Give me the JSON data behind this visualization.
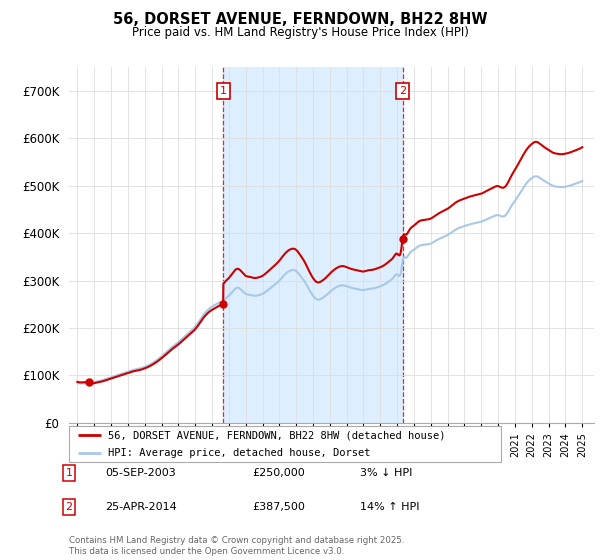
{
  "title": "56, DORSET AVENUE, FERNDOWN, BH22 8HW",
  "subtitle": "Price paid vs. HM Land Registry's House Price Index (HPI)",
  "legend_line1": "56, DORSET AVENUE, FERNDOWN, BH22 8HW (detached house)",
  "legend_line2": "HPI: Average price, detached house, Dorset",
  "annotation1_label": "1",
  "annotation1_date": "05-SEP-2003",
  "annotation1_price": "£250,000",
  "annotation1_hpi": "3% ↓ HPI",
  "annotation2_label": "2",
  "annotation2_date": "25-APR-2014",
  "annotation2_price": "£387,500",
  "annotation2_hpi": "14% ↑ HPI",
  "footer": "Contains HM Land Registry data © Crown copyright and database right 2025.\nThis data is licensed under the Open Government Licence v3.0.",
  "hpi_color": "#a8c8e8",
  "shade_color": "#ddeeff",
  "price_color": "#cc0000",
  "annotation_color": "#cc0000",
  "grid_color": "#dddddd",
  "background_color": "#ffffff",
  "ylim": [
    0,
    750000
  ],
  "yticks": [
    0,
    100000,
    200000,
    300000,
    400000,
    500000,
    600000,
    700000
  ],
  "ytick_labels": [
    "£0",
    "£100K",
    "£200K",
    "£300K",
    "£400K",
    "£500K",
    "£600K",
    "£700K"
  ],
  "xlim_start": 1994.5,
  "xlim_end": 2025.7,
  "sale1_year": 2003.67,
  "sale1_value": 250000,
  "sale2_year": 2014.32,
  "sale2_value": 387500,
  "sale0_year": 1995.67,
  "sale0_value": 86000,
  "hpi_data": [
    [
      1995.0,
      84000
    ],
    [
      1995.25,
      83000
    ],
    [
      1995.5,
      83500
    ],
    [
      1995.75,
      84000
    ],
    [
      1996.0,
      86000
    ],
    [
      1996.25,
      88000
    ],
    [
      1996.5,
      90000
    ],
    [
      1996.75,
      93000
    ],
    [
      1997.0,
      96000
    ],
    [
      1997.25,
      99000
    ],
    [
      1997.5,
      102000
    ],
    [
      1997.75,
      105000
    ],
    [
      1998.0,
      108000
    ],
    [
      1998.25,
      111000
    ],
    [
      1998.5,
      113000
    ],
    [
      1998.75,
      115000
    ],
    [
      1999.0,
      118000
    ],
    [
      1999.25,
      122000
    ],
    [
      1999.5,
      127000
    ],
    [
      1999.75,
      133000
    ],
    [
      2000.0,
      140000
    ],
    [
      2000.25,
      148000
    ],
    [
      2000.5,
      156000
    ],
    [
      2000.75,
      163000
    ],
    [
      2001.0,
      170000
    ],
    [
      2001.25,
      178000
    ],
    [
      2001.5,
      186000
    ],
    [
      2001.75,
      194000
    ],
    [
      2002.0,
      203000
    ],
    [
      2002.25,
      215000
    ],
    [
      2002.5,
      228000
    ],
    [
      2002.75,
      238000
    ],
    [
      2003.0,
      245000
    ],
    [
      2003.25,
      250000
    ],
    [
      2003.5,
      255000
    ],
    [
      2003.67,
      257000
    ],
    [
      2003.75,
      260000
    ],
    [
      2004.0,
      268000
    ],
    [
      2004.25,
      278000
    ],
    [
      2004.5,
      285000
    ],
    [
      2004.75,
      280000
    ],
    [
      2005.0,
      272000
    ],
    [
      2005.25,
      270000
    ],
    [
      2005.5,
      268000
    ],
    [
      2005.75,
      269000
    ],
    [
      2006.0,
      272000
    ],
    [
      2006.25,
      278000
    ],
    [
      2006.5,
      285000
    ],
    [
      2006.75,
      292000
    ],
    [
      2007.0,
      300000
    ],
    [
      2007.25,
      310000
    ],
    [
      2007.5,
      318000
    ],
    [
      2007.75,
      322000
    ],
    [
      2008.0,
      320000
    ],
    [
      2008.25,
      310000
    ],
    [
      2008.5,
      298000
    ],
    [
      2008.75,
      282000
    ],
    [
      2009.0,
      268000
    ],
    [
      2009.25,
      260000
    ],
    [
      2009.5,
      262000
    ],
    [
      2009.75,
      268000
    ],
    [
      2010.0,
      276000
    ],
    [
      2010.25,
      283000
    ],
    [
      2010.5,
      288000
    ],
    [
      2010.75,
      290000
    ],
    [
      2011.0,
      288000
    ],
    [
      2011.25,
      285000
    ],
    [
      2011.5,
      283000
    ],
    [
      2011.75,
      281000
    ],
    [
      2012.0,
      280000
    ],
    [
      2012.25,
      282000
    ],
    [
      2012.5,
      283000
    ],
    [
      2012.75,
      285000
    ],
    [
      2013.0,
      288000
    ],
    [
      2013.25,
      292000
    ],
    [
      2013.5,
      298000
    ],
    [
      2013.75,
      305000
    ],
    [
      2014.0,
      313000
    ],
    [
      2014.25,
      322000
    ],
    [
      2014.32,
      340000
    ],
    [
      2014.5,
      348000
    ],
    [
      2014.75,
      358000
    ],
    [
      2015.0,
      365000
    ],
    [
      2015.25,
      372000
    ],
    [
      2015.5,
      375000
    ],
    [
      2015.75,
      376000
    ],
    [
      2016.0,
      378000
    ],
    [
      2016.25,
      383000
    ],
    [
      2016.5,
      388000
    ],
    [
      2016.75,
      392000
    ],
    [
      2017.0,
      396000
    ],
    [
      2017.25,
      402000
    ],
    [
      2017.5,
      408000
    ],
    [
      2017.75,
      412000
    ],
    [
      2018.0,
      415000
    ],
    [
      2018.25,
      418000
    ],
    [
      2018.5,
      420000
    ],
    [
      2018.75,
      422000
    ],
    [
      2019.0,
      424000
    ],
    [
      2019.25,
      428000
    ],
    [
      2019.5,
      432000
    ],
    [
      2019.75,
      436000
    ],
    [
      2020.0,
      438000
    ],
    [
      2020.25,
      435000
    ],
    [
      2020.5,
      440000
    ],
    [
      2020.75,
      455000
    ],
    [
      2021.0,
      468000
    ],
    [
      2021.25,
      482000
    ],
    [
      2021.5,
      496000
    ],
    [
      2021.75,
      508000
    ],
    [
      2022.0,
      516000
    ],
    [
      2022.25,
      520000
    ],
    [
      2022.5,
      516000
    ],
    [
      2022.75,
      510000
    ],
    [
      2023.0,
      505000
    ],
    [
      2023.25,
      500000
    ],
    [
      2023.5,
      498000
    ],
    [
      2023.75,
      497000
    ],
    [
      2024.0,
      498000
    ],
    [
      2024.25,
      500000
    ],
    [
      2024.5,
      503000
    ],
    [
      2024.75,
      506000
    ],
    [
      2025.0,
      510000
    ]
  ]
}
